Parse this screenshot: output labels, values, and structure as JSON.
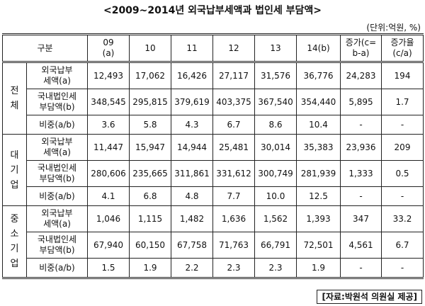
{
  "title": "<2009~2014년 외국납부세액과 법인세 부담액>",
  "unit": "(단위:억원, %)",
  "header": {
    "col_label": "구분",
    "years": [
      {
        "line1": "09",
        "line2": "(a)"
      },
      {
        "line1": "10",
        "line2": ""
      },
      {
        "line1": "11",
        "line2": ""
      },
      {
        "line1": "12",
        "line2": ""
      },
      {
        "line1": "13",
        "line2": ""
      },
      {
        "line1": "14(b)",
        "line2": ""
      }
    ],
    "increase": {
      "line1": "증가(c=",
      "line2": "b-a)"
    },
    "rate": {
      "line1": "증가율",
      "line2": "(c/a)"
    }
  },
  "groups": [
    {
      "chars": [
        "전",
        "체"
      ],
      "rows": [
        {
          "label1": "외국납부",
          "label2": "세액(a)",
          "values": [
            "12,493",
            "17,062",
            "16,426",
            "27,117",
            "31,576",
            "36,776",
            "24,283",
            "194"
          ]
        },
        {
          "label1": "국내법인세",
          "label2": "부담액(b)",
          "values": [
            "348,545",
            "295,815",
            "379,619",
            "403,375",
            "367,540",
            "354,440",
            "5,895",
            "1.7"
          ]
        },
        {
          "label1": "비중(a/b)",
          "label2": "",
          "values": [
            "3.6",
            "5.8",
            "4.3",
            "6.7",
            "8.6",
            "10.4",
            "-",
            "-"
          ]
        }
      ]
    },
    {
      "chars": [
        "대",
        "기",
        "업"
      ],
      "rows": [
        {
          "label1": "외국납부",
          "label2": "세액(a)",
          "values": [
            "11,447",
            "15,947",
            "14,944",
            "25,481",
            "30,014",
            "35,383",
            "23,936",
            "209"
          ]
        },
        {
          "label1": "국내법인세",
          "label2": "부담액(b)",
          "values": [
            "280,606",
            "235,665",
            "311,861",
            "331,612",
            "300,749",
            "281,939",
            "1,333",
            "0.5"
          ]
        },
        {
          "label1": "비중(a/b)",
          "label2": "",
          "values": [
            "4.1",
            "6.8",
            "4.8",
            "7.7",
            "10.0",
            "12.5",
            "-",
            "-"
          ]
        }
      ]
    },
    {
      "chars": [
        "중",
        "소",
        "기",
        "업"
      ],
      "rows": [
        {
          "label1": "외국납부",
          "label2": "세액(a)",
          "values": [
            "1,046",
            "1,115",
            "1,482",
            "1,636",
            "1,562",
            "1,393",
            "347",
            "33.2"
          ]
        },
        {
          "label1": "국내법인세",
          "label2": "부담액(b)",
          "values": [
            "67,940",
            "60,150",
            "67,758",
            "71,763",
            "66,791",
            "72,501",
            "4,561",
            "6.7"
          ]
        },
        {
          "label1": "비중(a/b)",
          "label2": "",
          "values": [
            "1.5",
            "1.9",
            "2.2",
            "2.3",
            "2.3",
            "1.9",
            "-",
            "-"
          ]
        }
      ]
    }
  ],
  "source": "[자료:박원석 의원실 제공]"
}
